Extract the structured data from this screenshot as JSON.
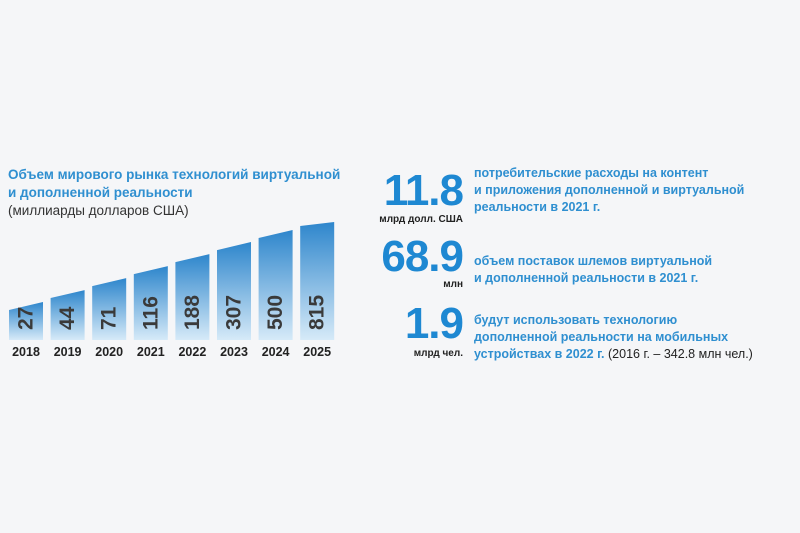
{
  "chart": {
    "title_line1": "Объем мирового рынка технологий виртуальной",
    "title_line2": "и дополненной реальности",
    "units": "(миллиарды долларов США)"
  },
  "chart_data": {
    "type": "bar",
    "title": "Объем мирового рынка технологий виртуальной и дополненной реальности",
    "ylabel": "(миллиарды долларов США)",
    "categories": [
      "2018",
      "2019",
      "2020",
      "2021",
      "2022",
      "2023",
      "2024",
      "2025"
    ],
    "values": [
      27,
      44,
      71,
      116,
      188,
      307,
      500,
      815
    ],
    "value_labels": [
      "27",
      "44",
      "71",
      "116",
      "188",
      "307",
      "500",
      "815"
    ],
    "colors": {
      "bar_top": "#2e86cc",
      "bar_bottom": "#cfe6f7",
      "label": "#3a3a3a"
    }
  },
  "stats": [
    {
      "value": "11.8",
      "unit": "млрд долл. США",
      "lines": [
        "потребительские расходы на контент",
        "и приложения дополненной и виртуальной",
        "реальности в 2021 г."
      ],
      "note": ""
    },
    {
      "value": "68.9",
      "unit": "млн",
      "lines": [
        "объем поставок шлемов виртуальной",
        "и дополненной реальности в 2021 г."
      ],
      "note": ""
    },
    {
      "value": "1.9",
      "unit": "млрд чел.",
      "lines": [
        "будут использовать технологию",
        "дополненной реальности на мобильных",
        "устройствах в 2022 г."
      ],
      "note": "(2016 г. – 342.8 млн чел.)"
    }
  ]
}
